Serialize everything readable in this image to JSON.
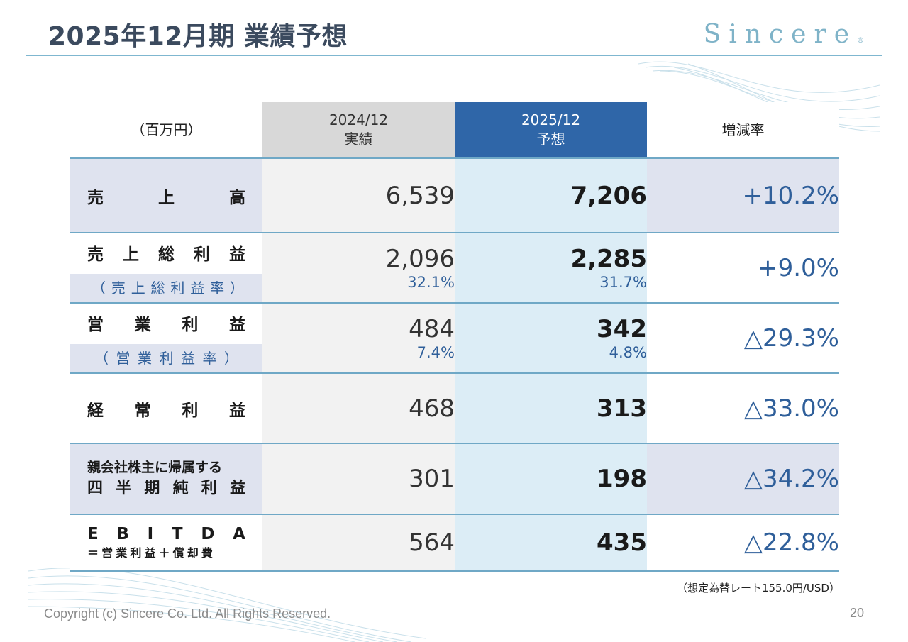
{
  "slide": {
    "title": "2025年12月期 業績予想",
    "logo_text": "Sincere",
    "logo_mark": "®",
    "note": "（想定為替レート155.0円/USD）",
    "copyright": "Copyright (c) Sincere Co. Ltd. All Rights Reserved.",
    "page_number": "20"
  },
  "table": {
    "unit": "（百万円）",
    "col_prev": {
      "line1": "2024/12",
      "line2": "実績"
    },
    "col_fcst": {
      "line1": "2025/12",
      "line2": "予想"
    },
    "col_rate": "増減率",
    "rows": {
      "sales": {
        "label": [
          "売",
          "上",
          "高"
        ],
        "prev": "6,539",
        "fcst": "7,206",
        "rate": "+10.2%"
      },
      "gross_profit": {
        "label": [
          "売",
          "上",
          "総",
          "利",
          "益"
        ],
        "sub_label": [
          "（",
          "売",
          "上",
          "総",
          "利",
          "益",
          "率",
          "）"
        ],
        "prev": "2,096",
        "prev_ratio": "32.1%",
        "fcst": "2,285",
        "fcst_ratio": "31.7%",
        "rate": "+9.0%"
      },
      "operating_profit": {
        "label": [
          "営",
          "業",
          "利",
          "益"
        ],
        "sub_label": [
          "（",
          "営",
          "業",
          "利",
          "益",
          "率",
          "）"
        ],
        "prev": "484",
        "prev_ratio": "7.4%",
        "fcst": "342",
        "fcst_ratio": "4.8%",
        "rate": "△29.3%"
      },
      "ordinary_profit": {
        "label": [
          "経",
          "常",
          "利",
          "益"
        ],
        "prev": "468",
        "fcst": "313",
        "rate": "△33.0%"
      },
      "net_profit": {
        "label_line1": "親会社株主に帰属する",
        "label_line2": [
          "四",
          "半",
          "期",
          "純",
          "利",
          "益"
        ],
        "prev": "301",
        "fcst": "198",
        "rate": "△34.2%"
      },
      "ebitda": {
        "label": [
          "E",
          "B",
          "I",
          "T",
          "D",
          "A"
        ],
        "sub_label": [
          "＝",
          "営",
          "業",
          "利",
          "益",
          "＋",
          "償",
          "却",
          "費"
        ],
        "prev": "564",
        "fcst": "435",
        "rate": "△22.8%"
      }
    }
  },
  "colors": {
    "title": "#3b4a5e",
    "logo": "#7fb3c8",
    "forecast_header": "#2f66a8",
    "prev_header": "#d8d8d8",
    "highlight": "#dfe3ef",
    "forecast_col": "#dcedf6",
    "rule": "#6fa8c6"
  }
}
